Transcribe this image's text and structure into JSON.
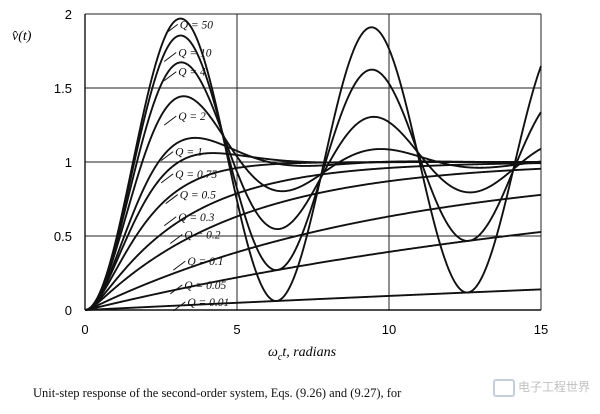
{
  "chart_data": {
    "type": "line",
    "title": "",
    "ylabel": "v̂(t)",
    "xlabel": "ω",
    "xlabel_sub": "c",
    "xlabel_rest": "t, radians",
    "xlim": [
      0,
      15
    ],
    "ylim": [
      0,
      2
    ],
    "xticks": [
      0,
      5,
      10,
      15
    ],
    "yticks": [
      0,
      0.5,
      1,
      1.5,
      2
    ],
    "ytick_labels": [
      "0",
      "0.5",
      "1",
      "1.5",
      "2"
    ],
    "grid": true,
    "series": [
      {
        "name": "Q = 50",
        "Q": 50
      },
      {
        "name": "Q = 10",
        "Q": 10
      },
      {
        "name": "Q = 4",
        "Q": 4
      },
      {
        "name": "Q = 2",
        "Q": 2
      },
      {
        "name": "Q = 1",
        "Q": 1
      },
      {
        "name": "Q = 0.75",
        "Q": 0.75
      },
      {
        "name": "Q = 0.5",
        "Q": 0.5
      },
      {
        "name": "Q = 0.3",
        "Q": 0.3
      },
      {
        "name": "Q = 0.2",
        "Q": 0.2
      },
      {
        "name": "Q = 0.1",
        "Q": 0.1
      },
      {
        "name": "Q = 0.05",
        "Q": 0.05
      },
      {
        "name": "Q = 0.01",
        "Q": 0.01
      }
    ],
    "curve_label_values": [
      {
        "text": "Q = 50",
        "x": 3.05,
        "y": 1.93
      },
      {
        "text": "Q = 10",
        "x": 3.0,
        "y": 1.74
      },
      {
        "text": "Q = 4",
        "x": 3.0,
        "y": 1.61
      },
      {
        "text": "Q = 2",
        "x": 3.0,
        "y": 1.31
      },
      {
        "text": "Q = 1",
        "x": 2.9,
        "y": 1.07
      },
      {
        "text": "Q = 0.75",
        "x": 2.9,
        "y": 0.92
      },
      {
        "text": "Q = 0.5",
        "x": 3.05,
        "y": 0.78
      },
      {
        "text": "Q = 0.3",
        "x": 3.0,
        "y": 0.63
      },
      {
        "text": "Q = 0.2",
        "x": 3.2,
        "y": 0.51
      },
      {
        "text": "Q = 0.1",
        "x": 3.3,
        "y": 0.33
      },
      {
        "text": "Q = 0.05",
        "x": 3.2,
        "y": 0.17
      },
      {
        "text": "Q = 0.01",
        "x": 3.3,
        "y": 0.055
      }
    ]
  },
  "caption": "Unit-step response of the second-order system, Eqs. (9.26) and (9.27), for",
  "watermark": "电子工程世界"
}
